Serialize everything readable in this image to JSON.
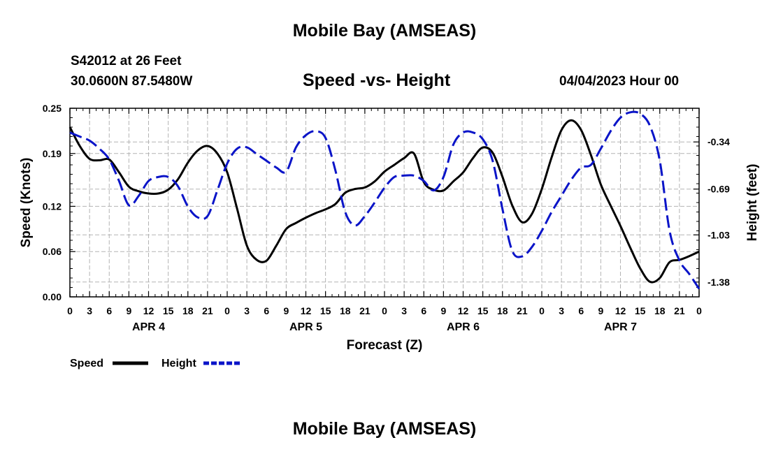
{
  "header": {
    "title": "Mobile Bay (AMSEAS)",
    "station": "S42012 at 26 Feet",
    "coords": "30.0600N  87.5480W",
    "subtitle": "Speed -vs- Height",
    "datetime": "04/04/2023 Hour 00"
  },
  "footer": {
    "title": "Mobile Bay (AMSEAS)"
  },
  "colors": {
    "speed": "#000000",
    "height": "#0a14c8",
    "grid": "#b4b4b4"
  },
  "chart_data": {
    "type": "line",
    "title": "Speed -vs- Height",
    "xlabel": "Forecast (Z)",
    "ylabel": "Speed (Knots)",
    "ylabel_right": "Height (feet)",
    "x_range": [
      0,
      96
    ],
    "x_ticks": [
      0,
      3,
      6,
      9,
      12,
      15,
      18,
      21,
      24,
      27,
      30,
      33,
      36,
      39,
      42,
      45,
      48,
      51,
      54,
      57,
      60,
      63,
      66,
      69,
      72,
      75,
      78,
      81,
      84,
      87,
      90,
      93,
      96
    ],
    "x_tick_labels": [
      "0",
      "3",
      "6",
      "9",
      "12",
      "15",
      "18",
      "21",
      "0",
      "3",
      "6",
      "9",
      "12",
      "15",
      "18",
      "21",
      "0",
      "3",
      "6",
      "9",
      "12",
      "15",
      "18",
      "21",
      "0",
      "3",
      "6",
      "9",
      "12",
      "15",
      "18",
      "21",
      "0"
    ],
    "day_labels": [
      {
        "x": 12,
        "label": "APR 4"
      },
      {
        "x": 36,
        "label": "APR 5"
      },
      {
        "x": 60,
        "label": "APR 6"
      },
      {
        "x": 84,
        "label": "APR 7"
      }
    ],
    "ylim": [
      0,
      0.25
    ],
    "y_ticks": [
      0.0,
      0.06,
      0.12,
      0.19,
      0.25
    ],
    "y_tick_labels": [
      "0.00",
      "0.06",
      "0.12",
      "0.19",
      "0.25"
    ],
    "ylim_right": [
      -1.49,
      -0.09
    ],
    "y_ticks_right": [
      -1.38,
      -1.03,
      -0.69,
      -0.34
    ],
    "y_tick_labels_right": [
      "-1.38",
      "-1.03",
      "-0.69",
      "-0.34"
    ],
    "grid": true,
    "legend_position": "bottom-left",
    "series": [
      {
        "name": "Speed",
        "axis": "left",
        "style": "solid",
        "x": [
          0,
          1.5,
          3,
          4.5,
          6,
          7.5,
          9,
          10.5,
          12,
          13.5,
          15,
          16.5,
          18,
          19.5,
          21,
          22.5,
          24,
          25.5,
          27,
          28.5,
          30,
          31.5,
          33,
          34.5,
          36,
          37.5,
          39,
          40.5,
          42,
          43.5,
          45,
          46.5,
          48,
          49.5,
          51,
          52.5,
          54,
          55.5,
          57,
          58.5,
          60,
          61.5,
          63,
          64.5,
          66,
          67.5,
          69,
          70.5,
          72,
          73.5,
          75,
          76.5,
          78,
          79.5,
          81,
          82.5,
          84,
          85.5,
          87,
          88.5,
          90,
          91.5,
          93,
          94.5,
          96
        ],
        "values": [
          0.225,
          0.2,
          0.183,
          0.181,
          0.182,
          0.165,
          0.146,
          0.14,
          0.137,
          0.137,
          0.142,
          0.156,
          0.178,
          0.194,
          0.2,
          0.19,
          0.165,
          0.117,
          0.068,
          0.049,
          0.048,
          0.068,
          0.09,
          0.098,
          0.105,
          0.111,
          0.116,
          0.123,
          0.138,
          0.143,
          0.145,
          0.153,
          0.166,
          0.175,
          0.184,
          0.19,
          0.152,
          0.142,
          0.141,
          0.153,
          0.165,
          0.184,
          0.198,
          0.191,
          0.159,
          0.121,
          0.099,
          0.11,
          0.143,
          0.185,
          0.221,
          0.234,
          0.221,
          0.188,
          0.149,
          0.121,
          0.094,
          0.065,
          0.038,
          0.02,
          0.025,
          0.046,
          0.049,
          0.054,
          0.06
        ]
      },
      {
        "name": "Height",
        "axis": "right",
        "style": "dashed",
        "x": [
          0,
          1.5,
          3,
          4.5,
          6,
          7.5,
          9,
          10.5,
          12,
          13.5,
          15,
          16.5,
          18,
          19.5,
          21,
          22.5,
          24,
          25.5,
          27,
          28.5,
          30,
          31.5,
          33,
          34.5,
          36,
          37.5,
          39,
          40.5,
          42,
          43.5,
          45,
          46.5,
          48,
          49.5,
          51,
          52.5,
          54,
          55.5,
          57,
          58.5,
          60,
          61.5,
          63,
          64.5,
          66,
          67.5,
          69,
          70.5,
          72,
          73.5,
          75,
          76.5,
          78,
          79.5,
          81,
          82.5,
          84,
          85.5,
          87,
          88.5,
          90,
          91.5,
          93,
          94.5,
          96
        ],
        "values": [
          -0.27,
          -0.3,
          -0.33,
          -0.39,
          -0.47,
          -0.63,
          -0.81,
          -0.74,
          -0.63,
          -0.6,
          -0.6,
          -0.67,
          -0.82,
          -0.9,
          -0.89,
          -0.7,
          -0.5,
          -0.39,
          -0.38,
          -0.43,
          -0.48,
          -0.53,
          -0.56,
          -0.38,
          -0.29,
          -0.26,
          -0.31,
          -0.55,
          -0.86,
          -0.96,
          -0.89,
          -0.79,
          -0.68,
          -0.6,
          -0.59,
          -0.59,
          -0.63,
          -0.7,
          -0.6,
          -0.36,
          -0.27,
          -0.27,
          -0.32,
          -0.48,
          -0.84,
          -1.15,
          -1.19,
          -1.12,
          -1.0,
          -0.86,
          -0.74,
          -0.62,
          -0.53,
          -0.51,
          -0.39,
          -0.26,
          -0.16,
          -0.12,
          -0.13,
          -0.22,
          -0.48,
          -1.0,
          -1.22,
          -1.32,
          -1.43
        ]
      }
    ]
  }
}
